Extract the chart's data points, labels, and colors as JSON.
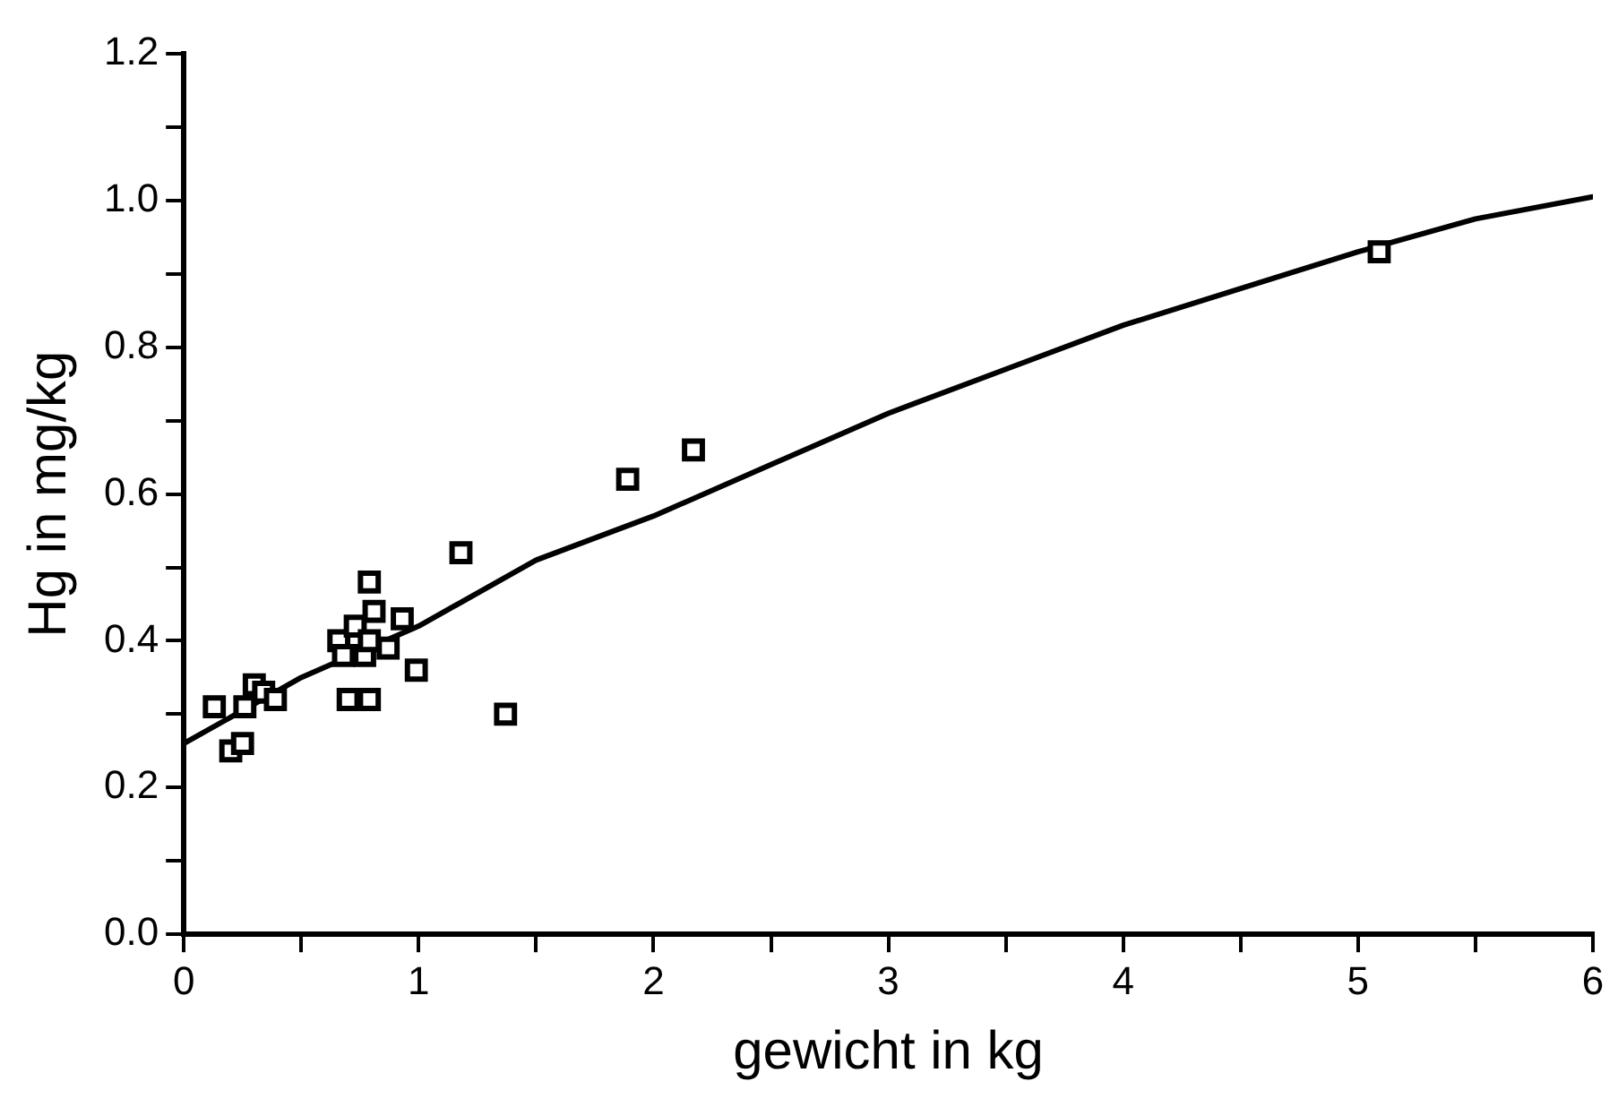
{
  "chart_data": {
    "type": "scatter",
    "xlabel": "gewicht in kg",
    "ylabel": "Hg in mg/kg",
    "xlim": [
      0,
      6
    ],
    "ylim": [
      0,
      1.2
    ],
    "xticks": [
      0,
      {
        "value": 0.5,
        "label": null
      },
      1,
      {
        "value": 1.5,
        "label": null
      },
      2,
      {
        "value": 2.5,
        "label": null
      },
      3,
      {
        "value": 3.5,
        "label": null
      },
      4,
      {
        "value": 4.5,
        "label": null
      },
      5,
      {
        "value": 5.5,
        "label": null
      },
      6
    ],
    "yticks": [
      {
        "value": 0,
        "label": "0.0"
      },
      {
        "value": 0.1,
        "label": null
      },
      0.2,
      {
        "value": 0.3,
        "label": null
      },
      0.4,
      {
        "value": 0.5,
        "label": null
      },
      0.6,
      {
        "value": 0.7,
        "label": null
      },
      0.8,
      {
        "value": 0.9,
        "label": null
      },
      {
        "value": 1.0,
        "label": "1.0"
      },
      {
        "value": 1.1,
        "label": null
      },
      1.2
    ],
    "grid": false,
    "legend": false,
    "series": [
      {
        "marker": "square",
        "color": "#000000",
        "x": [
          0.13,
          0.2,
          0.25,
          0.26,
          0.3,
          0.34,
          0.39,
          0.66,
          0.68,
          0.73,
          0.79,
          0.7,
          0.79,
          0.77,
          0.81,
          0.93,
          0.87,
          0.99,
          0.79,
          1.18,
          1.37,
          1.89,
          2.17,
          5.09
        ],
        "values": [
          0.31,
          0.25,
          0.26,
          0.31,
          0.34,
          0.33,
          0.32,
          0.4,
          0.38,
          0.42,
          0.48,
          0.32,
          0.32,
          0.38,
          0.44,
          0.43,
          0.39,
          0.36,
          0.4,
          0.52,
          0.3,
          0.62,
          0.66,
          0.93
        ]
      },
      {
        "type": "line",
        "marker": "none",
        "color": "#000000",
        "x": [
          0,
          0.5,
          1,
          1.5,
          2,
          2.5,
          3,
          3.5,
          4,
          4.5,
          5,
          5.5,
          6
        ],
        "values": [
          0.26,
          0.35,
          0.42,
          0.51,
          0.57,
          0.64,
          0.71,
          0.77,
          0.83,
          0.88,
          0.93,
          0.975,
          1.005
        ]
      }
    ]
  }
}
